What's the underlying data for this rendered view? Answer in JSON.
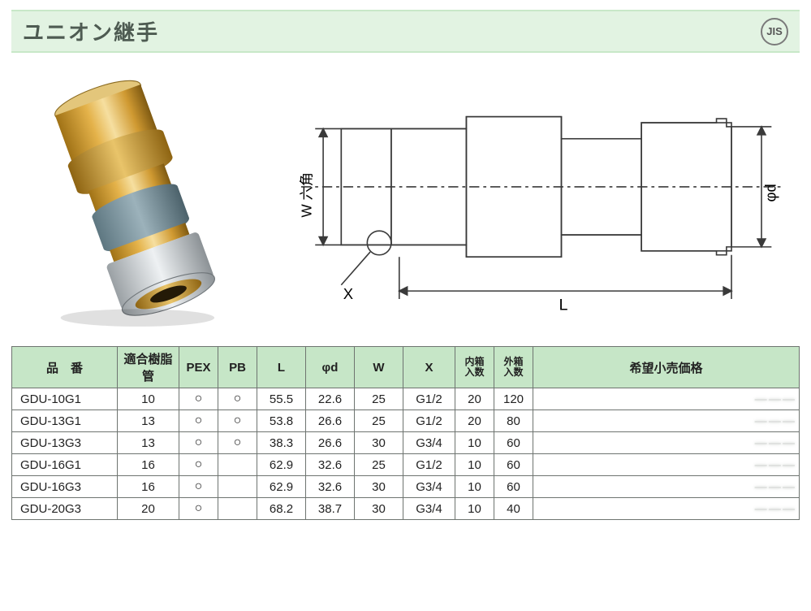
{
  "colors": {
    "title_bg": "#e2f3e2",
    "title_fg": "#4e5b52",
    "header_bg": "#c6e6c7",
    "border": "#6e7470",
    "mark": "○"
  },
  "title": {
    "text": "ユニオン継手",
    "fontsize": 26,
    "badge": "JIS"
  },
  "diagram": {
    "label_W": "W 六角",
    "label_X": "X",
    "label_L": "L",
    "label_phi": "φd",
    "stroke": "#3a3a3a",
    "stroke_w": 1.3
  },
  "table": {
    "headers": {
      "part": "品　番",
      "pipe": "適合樹脂管",
      "pex": "PEX",
      "pb": "PB",
      "L": "L",
      "phi": "φd",
      "W": "W",
      "X": "X",
      "inner_l1": "内箱",
      "inner_l2": "入数",
      "outer_l1": "外箱",
      "outer_l2": "入数",
      "price": "希望小売価格"
    },
    "rows": [
      {
        "part": "GDU-10G1",
        "pipe": "10",
        "pex": "○",
        "pb": "○",
        "L": "55.5",
        "phi": "22.6",
        "W": "25",
        "X": "G1/2",
        "inner": "20",
        "outer": "120",
        "price": ""
      },
      {
        "part": "GDU-13G1",
        "pipe": "13",
        "pex": "○",
        "pb": "○",
        "L": "53.8",
        "phi": "26.6",
        "W": "25",
        "X": "G1/2",
        "inner": "20",
        "outer": "80",
        "price": ""
      },
      {
        "part": "GDU-13G3",
        "pipe": "13",
        "pex": "○",
        "pb": "○",
        "L": "38.3",
        "phi": "26.6",
        "W": "30",
        "X": "G3/4",
        "inner": "10",
        "outer": "60",
        "price": ""
      },
      {
        "part": "GDU-16G1",
        "pipe": "16",
        "pex": "○",
        "pb": "",
        "L": "62.9",
        "phi": "32.6",
        "W": "25",
        "X": "G1/2",
        "inner": "10",
        "outer": "60",
        "price": ""
      },
      {
        "part": "GDU-16G3",
        "pipe": "16",
        "pex": "○",
        "pb": "",
        "L": "62.9",
        "phi": "32.6",
        "W": "30",
        "X": "G3/4",
        "inner": "10",
        "outer": "60",
        "price": ""
      },
      {
        "part": "GDU-20G3",
        "pipe": "20",
        "pex": "○",
        "pb": "",
        "L": "68.2",
        "phi": "38.7",
        "W": "30",
        "X": "G3/4",
        "inner": "10",
        "outer": "40",
        "price": ""
      }
    ]
  }
}
